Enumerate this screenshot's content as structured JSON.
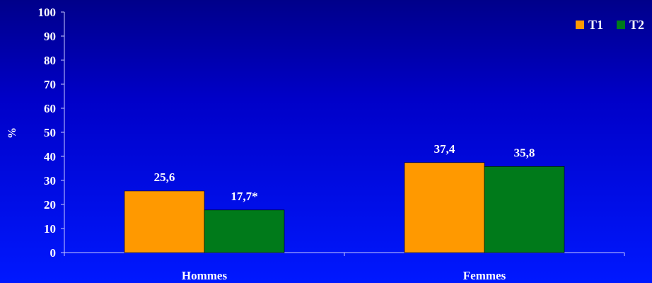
{
  "chart_data": {
    "type": "bar",
    "title": "",
    "xlabel": "",
    "ylabel": "%",
    "ylim": [
      0,
      100
    ],
    "yticks": [
      "0",
      "10",
      "20",
      "30",
      "40",
      "50",
      "60",
      "70",
      "80",
      "90",
      "100"
    ],
    "categories": [
      "Hommes",
      "Femmes"
    ],
    "series": [
      {
        "name": "T1",
        "color": "#ff9900",
        "values": [
          25.6,
          37.4
        ],
        "labels": [
          "25,6",
          "37,4"
        ]
      },
      {
        "name": "T2",
        "color": "#007a1a",
        "values": [
          17.7,
          35.8
        ],
        "labels": [
          "17,7*",
          "35,8"
        ]
      }
    ],
    "grid": false,
    "legend": "top-right"
  }
}
